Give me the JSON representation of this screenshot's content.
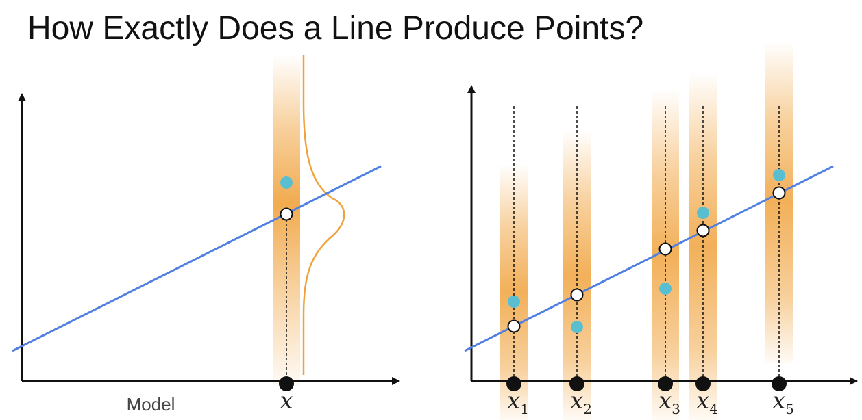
{
  "title": "How Exactly Does a Line Produce Points?",
  "left_panel": {
    "caption": "Model",
    "x_label": "x"
  },
  "right_panel": {
    "x_labels": [
      {
        "symbol": "x",
        "subscript": "1"
      },
      {
        "symbol": "x",
        "subscript": "2"
      },
      {
        "symbol": "x",
        "subscript": "3"
      },
      {
        "symbol": "x",
        "subscript": "4"
      },
      {
        "symbol": "x",
        "subscript": "5"
      }
    ]
  },
  "colors": {
    "line": "#4f7fe0",
    "band": "#f0a23c",
    "observed_point": "#59bfd0",
    "predicted_point_stroke": "#111111",
    "predicted_point_fill": "#ffffff",
    "axis": "#111111"
  }
}
